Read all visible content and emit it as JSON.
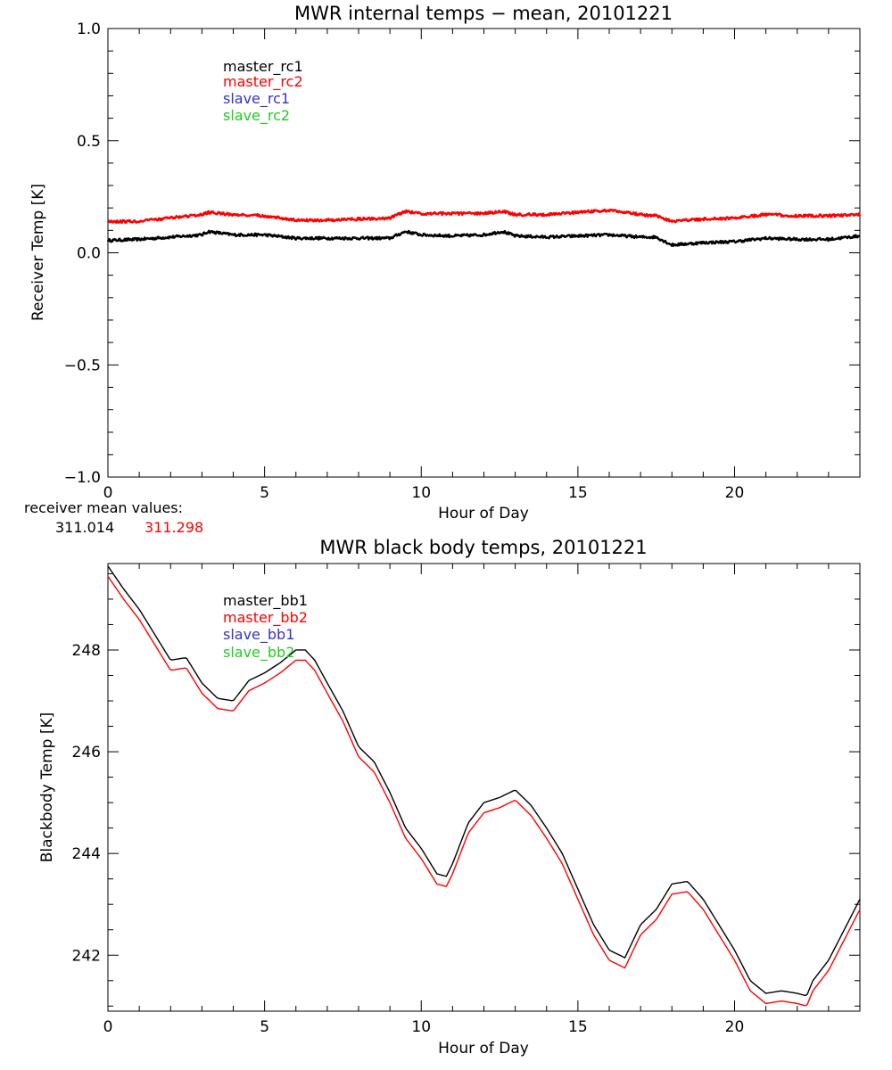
{
  "chart_data": [
    {
      "type": "line",
      "title": "MWR internal temps − mean, 20101221",
      "xlabel": "Hour of Day",
      "ylabel": "Receiver Temp [K]",
      "xlim": [
        0,
        24
      ],
      "ylim": [
        -1.0,
        1.0
      ],
      "xticks": [
        0,
        5,
        10,
        15,
        20
      ],
      "xtick_labels": [
        "0",
        "5",
        "10",
        "15",
        "20"
      ],
      "yticks": [
        -1.0,
        -0.5,
        0.0,
        0.5,
        1.0
      ],
      "ytick_labels": [
        "−1.0",
        "−0.5",
        "0.0",
        "0.5",
        "1.0"
      ],
      "legend": [
        "master_rc1",
        "master_rc2",
        "slave_rc1",
        "slave_rc2"
      ],
      "legend_placement": "top-left",
      "series": [
        {
          "name": "master_rc1",
          "color": "#000000",
          "x": [
            0,
            1,
            2,
            3,
            3.2,
            4,
            5,
            6,
            7,
            8,
            9,
            9.5,
            10,
            11,
            12,
            12.6,
            13,
            14,
            15,
            16,
            17,
            17.5,
            18,
            19,
            20,
            21,
            22,
            23,
            24
          ],
          "y": [
            0.055,
            0.06,
            0.07,
            0.08,
            0.095,
            0.08,
            0.08,
            0.065,
            0.065,
            0.065,
            0.065,
            0.095,
            0.08,
            0.075,
            0.08,
            0.095,
            0.075,
            0.07,
            0.075,
            0.08,
            0.07,
            0.07,
            0.035,
            0.045,
            0.05,
            0.065,
            0.06,
            0.06,
            0.075
          ]
        },
        {
          "name": "master_rc2",
          "color": "#ff0000",
          "x": [
            0,
            1,
            2,
            3,
            3.2,
            4,
            5,
            6,
            7,
            8,
            9,
            9.5,
            10,
            11,
            12,
            12.6,
            13,
            14,
            15,
            16,
            17,
            17.5,
            18,
            19,
            20,
            21,
            22,
            23,
            24
          ],
          "y": [
            0.14,
            0.14,
            0.155,
            0.17,
            0.18,
            0.17,
            0.165,
            0.145,
            0.145,
            0.15,
            0.155,
            0.185,
            0.175,
            0.175,
            0.175,
            0.185,
            0.17,
            0.17,
            0.18,
            0.19,
            0.17,
            0.165,
            0.14,
            0.15,
            0.155,
            0.17,
            0.165,
            0.165,
            0.17
          ]
        }
      ],
      "annotation": {
        "label": "receiver mean values:",
        "values": [
          "311.014",
          "311.298"
        ],
        "colors": [
          "#000000",
          "#ff0000"
        ]
      }
    },
    {
      "type": "line",
      "title": "MWR black body temps, 20101221",
      "xlabel": "Hour of Day",
      "ylabel": "Blackbody Temp [K]",
      "xlim": [
        0,
        24
      ],
      "ylim": [
        240.9,
        249.7
      ],
      "xticks": [
        0,
        5,
        10,
        15,
        20
      ],
      "xtick_labels": [
        "0",
        "5",
        "10",
        "15",
        "20"
      ],
      "yticks": [
        242,
        244,
        246,
        248
      ],
      "ytick_labels": [
        "242",
        "244",
        "246",
        "248"
      ],
      "legend": [
        "master_bb1",
        "master_bb2",
        "slave_bb1",
        "slave_bb2"
      ],
      "legend_placement": "top-left",
      "series": [
        {
          "name": "master_bb1",
          "color": "#000000",
          "x": [
            0,
            0.5,
            1,
            1.5,
            2,
            2.5,
            3,
            3.5,
            4,
            4.5,
            5,
            5.5,
            6,
            6.3,
            6.6,
            7,
            7.5,
            8,
            8.5,
            9,
            9.5,
            10,
            10.5,
            10.8,
            11,
            11.5,
            12,
            12.5,
            13,
            13.5,
            14,
            14.5,
            15,
            15.5,
            16,
            16.5,
            17,
            17.5,
            18,
            18.5,
            19,
            19.5,
            20,
            20.5,
            21,
            21.5,
            22,
            22.3,
            22.5,
            23,
            23.5,
            24
          ],
          "y": [
            249.65,
            249.2,
            248.8,
            248.3,
            247.8,
            247.85,
            247.35,
            247.05,
            247.0,
            247.4,
            247.55,
            247.75,
            248.0,
            248.0,
            247.8,
            247.35,
            246.8,
            246.1,
            245.8,
            245.2,
            244.5,
            244.1,
            243.6,
            243.55,
            243.8,
            244.6,
            245.0,
            245.1,
            245.25,
            244.95,
            244.5,
            244.0,
            243.3,
            242.6,
            242.1,
            241.95,
            242.6,
            242.9,
            243.4,
            243.45,
            243.1,
            242.6,
            242.1,
            241.5,
            241.25,
            241.3,
            241.25,
            241.2,
            241.5,
            241.9,
            242.5,
            243.1
          ]
        },
        {
          "name": "master_bb2",
          "color": "#ff0000",
          "x": [
            0,
            0.5,
            1,
            1.5,
            2,
            2.5,
            3,
            3.5,
            4,
            4.5,
            5,
            5.5,
            6,
            6.3,
            6.6,
            7,
            7.5,
            8,
            8.5,
            9,
            9.5,
            10,
            10.5,
            10.8,
            11,
            11.5,
            12,
            12.5,
            13,
            13.5,
            14,
            14.5,
            15,
            15.5,
            16,
            16.5,
            17,
            17.5,
            18,
            18.5,
            19,
            19.5,
            20,
            20.5,
            21,
            21.5,
            22,
            22.3,
            22.5,
            23,
            23.5,
            24
          ],
          "y": [
            249.45,
            249.0,
            248.6,
            248.1,
            247.6,
            247.65,
            247.15,
            246.85,
            246.8,
            247.2,
            247.35,
            247.55,
            247.8,
            247.8,
            247.6,
            247.15,
            246.6,
            245.9,
            245.6,
            245.0,
            244.3,
            243.9,
            243.4,
            243.35,
            243.6,
            244.4,
            244.8,
            244.9,
            245.05,
            244.75,
            244.3,
            243.8,
            243.1,
            242.4,
            241.9,
            241.75,
            242.4,
            242.7,
            243.2,
            243.25,
            242.9,
            242.4,
            241.9,
            241.3,
            241.05,
            241.1,
            241.05,
            241.0,
            241.3,
            241.7,
            242.3,
            242.9
          ]
        }
      ]
    }
  ]
}
